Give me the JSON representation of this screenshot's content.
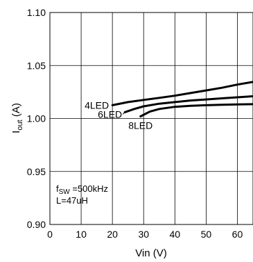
{
  "chart_data": {
    "type": "line",
    "title": "",
    "xlabel": "Vin (V)",
    "ylabel_base": "I",
    "ylabel_sub": "out",
    "ylabel_unit": " (A)",
    "xlim": [
      0,
      65
    ],
    "ylim": [
      0.9,
      1.1
    ],
    "x_ticks": [
      0,
      10,
      20,
      30,
      40,
      50,
      60
    ],
    "x_tick_labels": [
      "0",
      "10",
      "20",
      "30",
      "40",
      "50",
      "60"
    ],
    "y_ticks": [
      0.9,
      0.95,
      1.0,
      1.05,
      1.1
    ],
    "y_tick_labels": [
      "0.90",
      "0.95",
      "1.00",
      "1.05",
      "1.10"
    ],
    "grid": true,
    "series": [
      {
        "name": "4LED",
        "x": [
          20,
          25,
          30,
          35,
          40,
          45,
          50,
          55,
          60,
          65
        ],
        "y": [
          1.0125,
          1.0155,
          1.0175,
          1.0195,
          1.0215,
          1.024,
          1.0265,
          1.029,
          1.032,
          1.0345
        ]
      },
      {
        "name": "6LED",
        "x": [
          24,
          27,
          30,
          35,
          40,
          45,
          50,
          55,
          60,
          65
        ],
        "y": [
          1.006,
          1.009,
          1.0115,
          1.014,
          1.0155,
          1.017,
          1.018,
          1.019,
          1.02,
          1.021
        ]
      },
      {
        "name": "8LED",
        "x": [
          29,
          32,
          35,
          40,
          45,
          50,
          55,
          60,
          65
        ],
        "y": [
          1.002,
          1.0065,
          1.009,
          1.011,
          1.012,
          1.0125,
          1.013,
          1.0133,
          1.0135
        ]
      }
    ],
    "annotations": {
      "fsw_base": "f",
      "fsw_sub": "SW",
      "fsw_value": " =500kHz",
      "inductance": "L=47uH"
    }
  }
}
